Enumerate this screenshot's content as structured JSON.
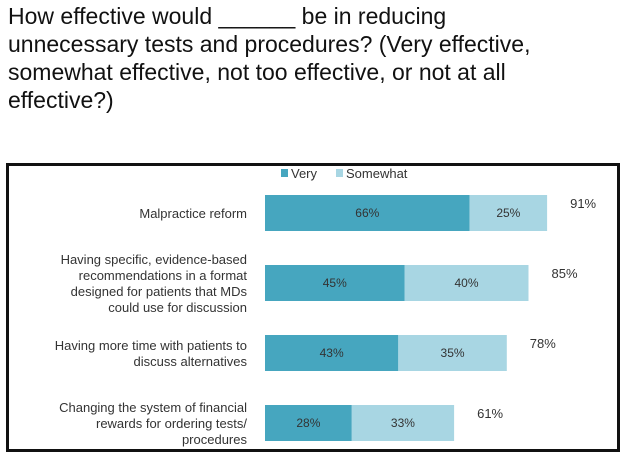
{
  "question": {
    "line1": "How effective would ______ be in reducing",
    "line2": "unnecessary tests and procedures? (Very effective,",
    "line3": "somewhat effective, not too effective, or not at all",
    "line4": "effective?)"
  },
  "colors": {
    "very": "#46a6bf",
    "somewhat": "#a8d6e3",
    "frame": "#111111"
  },
  "chart_data": {
    "type": "bar",
    "orientation": "horizontal",
    "stacked": true,
    "legend_position": "top-center",
    "xlim": [
      0,
      100
    ],
    "grid": false,
    "legend": [
      "Very",
      "Somewhat"
    ],
    "categories": [
      {
        "lines": [
          "Malpractice reform"
        ]
      },
      {
        "lines": [
          "Having specific, evidence-based",
          "recommendations in a format",
          "designed for patients that MDs",
          "could use for discussion"
        ]
      },
      {
        "lines": [
          "Having more time with patients to",
          "discuss alternatives"
        ]
      },
      {
        "lines": [
          "Changing the system of financial",
          "rewards for ordering tests/",
          "procedures"
        ]
      }
    ],
    "series": [
      {
        "name": "Very",
        "values": [
          66,
          45,
          43,
          28
        ],
        "labels": [
          "66%",
          "45%",
          "43%",
          "28%"
        ]
      },
      {
        "name": "Somewhat",
        "values": [
          25,
          40,
          35,
          33
        ],
        "labels": [
          "25%",
          "40%",
          "35%",
          "33%"
        ]
      }
    ],
    "totals": [
      91,
      85,
      78,
      61
    ],
    "total_labels": [
      "91%",
      "85%",
      "78%",
      "61%"
    ]
  }
}
